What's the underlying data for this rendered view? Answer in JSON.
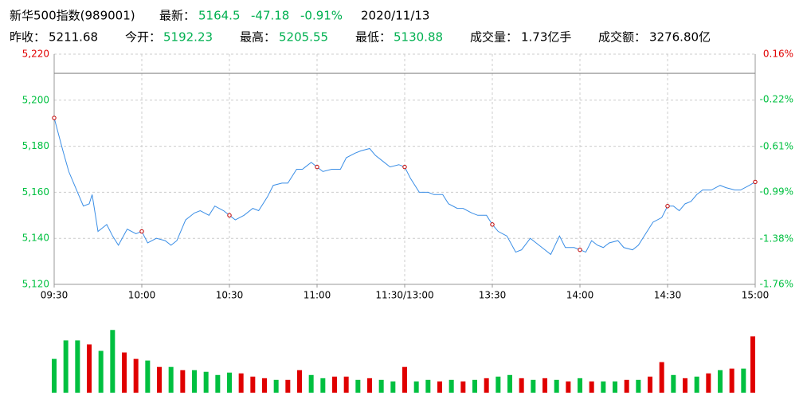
{
  "header": {
    "name": "新华500指数(989001)",
    "latest_label": "最新：",
    "latest": "5164.5",
    "change": "-47.18",
    "change_pct": "-0.91%",
    "date": "2020/11/13",
    "prev_close_label": "昨收：",
    "open_label": "今开：",
    "open": "5192.23",
    "high_label": "最高：",
    "high": "5205.55",
    "low_label": "最低：",
    "low": "5130.88",
    "volume_label": "成交量：",
    "volume": "1.73亿手",
    "amount_label": "成交额：",
    "amount": "3276.80亿"
  },
  "chart_data": {
    "type": "line",
    "prev_close": 5211.68,
    "xlim": [
      0,
      240
    ],
    "xticks": [
      {
        "value": 0,
        "label": "09:30"
      },
      {
        "value": 30,
        "label": "10:00"
      },
      {
        "value": 60,
        "label": "10:30"
      },
      {
        "value": 90,
        "label": "11:00"
      },
      {
        "value": 120,
        "label": "11:30/13:00"
      },
      {
        "value": 150,
        "label": "13:30"
      },
      {
        "value": 180,
        "label": "14:00"
      },
      {
        "value": 210,
        "label": "14:30"
      },
      {
        "value": 240,
        "label": "15:00"
      }
    ],
    "ylim": [
      5120,
      5220
    ],
    "yticks": [
      {
        "value": 5120,
        "label": "5,120"
      },
      {
        "value": 5140,
        "label": "5,140"
      },
      {
        "value": 5160,
        "label": "5,160"
      },
      {
        "value": 5180,
        "label": "5,180"
      },
      {
        "value": 5200,
        "label": "5,200"
      },
      {
        "value": 5220,
        "label": "5,220"
      }
    ],
    "y2lim": [
      -1.76,
      0.16
    ],
    "y2ticks": [
      {
        "value": -1.76,
        "label": "-1.76%"
      },
      {
        "value": -1.38,
        "label": "-1.38%"
      },
      {
        "value": -0.99,
        "label": "-0.99%"
      },
      {
        "value": -0.61,
        "label": "-0.61%"
      },
      {
        "value": -0.22,
        "label": "-0.22%"
      },
      {
        "value": 0.16,
        "label": "0.16%"
      }
    ],
    "grid": true,
    "up_color": "#e00000",
    "down_color": "#00c040",
    "series": [
      {
        "color": "#3a8ee6",
        "x": [
          0,
          3,
          5,
          8,
          10,
          12,
          13,
          15,
          18,
          20,
          22,
          25,
          28,
          30,
          32,
          35,
          38,
          40,
          42,
          45,
          48,
          50,
          53,
          55,
          58,
          60,
          62,
          65,
          68,
          70,
          73,
          75,
          78,
          80,
          83,
          85,
          88,
          90,
          92,
          95,
          98,
          100,
          103,
          105,
          108,
          110,
          113,
          115,
          118,
          120,
          122,
          125,
          128,
          130,
          133,
          135,
          138,
          140,
          143,
          145,
          148,
          150,
          152,
          155,
          158,
          160,
          163,
          165,
          168,
          170,
          173,
          175,
          178,
          180,
          182,
          184,
          186,
          188,
          190,
          193,
          195,
          198,
          200,
          203,
          205,
          208,
          210,
          212,
          214,
          216,
          218,
          220,
          222,
          225,
          228,
          230,
          233,
          235,
          238,
          240
        ],
        "values": [
          5192.3,
          5178,
          5169,
          5160,
          5154,
          5155,
          5159,
          5143,
          5146,
          5141,
          5137,
          5144,
          5142,
          5143,
          5138,
          5140,
          5139,
          5137,
          5139,
          5148,
          5151,
          5152,
          5150,
          5154,
          5152,
          5150,
          5148,
          5150,
          5153,
          5152,
          5158,
          5163,
          5164,
          5164,
          5170,
          5170,
          5173,
          5171,
          5169,
          5170,
          5170,
          5175,
          5177,
          5178,
          5179,
          5176,
          5173,
          5171,
          5172,
          5171,
          5166,
          5160,
          5160,
          5159,
          5159,
          5155,
          5153,
          5153,
          5151,
          5150,
          5150,
          5146,
          5143,
          5141,
          5134,
          5135,
          5140,
          5138,
          5135,
          5133,
          5141,
          5136,
          5136,
          5135,
          5134,
          5139,
          5137,
          5136,
          5138,
          5139,
          5136,
          5135,
          5137,
          5143,
          5147,
          5149,
          5154,
          5154,
          5152,
          5155,
          5156,
          5159,
          5161,
          5161,
          5163,
          5162,
          5161,
          5161,
          5163,
          5164.5
        ]
      }
    ],
    "volume": {
      "ylim": [
        0,
        105
      ],
      "x": [
        0,
        4,
        8,
        12,
        16,
        20,
        24,
        28,
        32,
        36,
        40,
        44,
        48,
        52,
        56,
        60,
        64,
        68,
        72,
        76,
        80,
        84,
        88,
        92,
        96,
        100,
        104,
        108,
        112,
        116,
        120,
        124,
        128,
        132,
        136,
        140,
        144,
        148,
        152,
        156,
        160,
        164,
        168,
        172,
        176,
        180,
        184,
        188,
        192,
        196,
        200,
        204,
        208,
        212,
        216,
        220,
        224,
        228,
        232,
        236,
        240
      ],
      "values": [
        42,
        65,
        65,
        60,
        52,
        78,
        50,
        42,
        40,
        32,
        32,
        28,
        28,
        26,
        22,
        25,
        24,
        20,
        18,
        16,
        16,
        28,
        22,
        18,
        20,
        20,
        16,
        18,
        16,
        14,
        32,
        14,
        16,
        14,
        16,
        14,
        16,
        18,
        20,
        22,
        18,
        16,
        18,
        16,
        14,
        18,
        14,
        14,
        14,
        16,
        16,
        20,
        38,
        22,
        18,
        20,
        24,
        28,
        30,
        30,
        70
      ],
      "colors": [
        "#00c040",
        "#00c040",
        "#00c040",
        "#e00000",
        "#00c040",
        "#00c040",
        "#e00000",
        "#e00000",
        "#00c040",
        "#e00000",
        "#00c040",
        "#e00000",
        "#00c040",
        "#00c040",
        "#00c040",
        "#00c040",
        "#e00000",
        "#e00000",
        "#e00000",
        "#00c040",
        "#e00000",
        "#e00000",
        "#00c040",
        "#00c040",
        "#e00000",
        "#e00000",
        "#00c040",
        "#e00000",
        "#00c040",
        "#00c040",
        "#e00000",
        "#00c040",
        "#00c040",
        "#e00000",
        "#00c040",
        "#e00000",
        "#00c040",
        "#e00000",
        "#00c040",
        "#00c040",
        "#e00000",
        "#00c040",
        "#e00000",
        "#00c040",
        "#e00000",
        "#00c040",
        "#e00000",
        "#00c040",
        "#00c040",
        "#e00000",
        "#00c040",
        "#e00000",
        "#e00000",
        "#00c040",
        "#e00000",
        "#00c040",
        "#e00000",
        "#00c040",
        "#e00000",
        "#00c040",
        "#e00000"
      ]
    }
  }
}
